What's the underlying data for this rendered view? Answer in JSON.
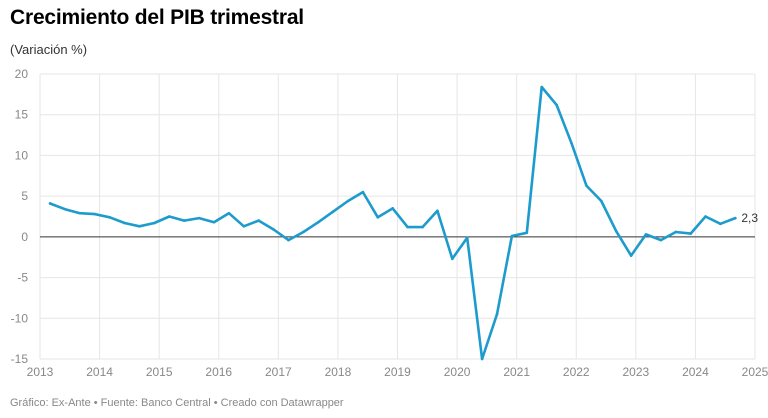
{
  "title": "Crecimiento del PIB trimestral",
  "subtitle": "(Variación %)",
  "footer": "Gráfico: Ex-Ante • Fuente: Banco Central • Creado con Datawrapper",
  "chart_data": {
    "type": "line",
    "title": "Crecimiento del PIB trimestral",
    "subtitle": "(Variación %)",
    "xlabel": "",
    "ylabel": "",
    "xlim": [
      2013,
      2025
    ],
    "ylim": [
      -15,
      20
    ],
    "yticks": [
      20,
      15,
      10,
      5,
      0,
      -5,
      -10,
      -15
    ],
    "xticks": [
      "2013",
      "2014",
      "2015",
      "2016",
      "2017",
      "2018",
      "2019",
      "2020",
      "2021",
      "2022",
      "2023",
      "2024",
      "2025"
    ],
    "grid": true,
    "line_color": "#1d9bcd",
    "zero_line_color": "#333333",
    "end_label": "2,3",
    "series": [
      {
        "x": [
          2013.17,
          2013.42,
          2013.67,
          2013.92,
          2014.17,
          2014.42,
          2014.67,
          2014.92,
          2015.17,
          2015.42,
          2015.67,
          2015.92,
          2016.17,
          2016.42,
          2016.67,
          2016.92,
          2017.17,
          2017.42,
          2017.67,
          2017.92,
          2018.17,
          2018.42,
          2018.67,
          2018.92,
          2019.17,
          2019.42,
          2019.67,
          2019.92,
          2020.17,
          2020.42,
          2020.67,
          2020.92,
          2021.17,
          2021.42,
          2021.67,
          2021.92,
          2022.17,
          2022.42,
          2022.67,
          2022.92,
          2023.17,
          2023.42,
          2023.67,
          2023.92,
          2024.17,
          2024.42,
          2024.67
        ],
        "values": [
          4.1,
          3.4,
          2.9,
          2.8,
          2.4,
          1.7,
          1.3,
          1.7,
          2.5,
          2.0,
          2.3,
          1.8,
          2.9,
          1.3,
          2.0,
          0.9,
          -0.4,
          0.6,
          1.8,
          3.1,
          4.4,
          5.5,
          2.4,
          3.5,
          1.2,
          1.2,
          3.2,
          -2.7,
          -0.1,
          -15.0,
          -9.5,
          0.1,
          0.5,
          18.4,
          16.2,
          11.5,
          6.3,
          4.4,
          0.7,
          -2.3,
          0.3,
          -0.4,
          0.6,
          0.4,
          2.5,
          1.6,
          2.3
        ]
      }
    ]
  }
}
